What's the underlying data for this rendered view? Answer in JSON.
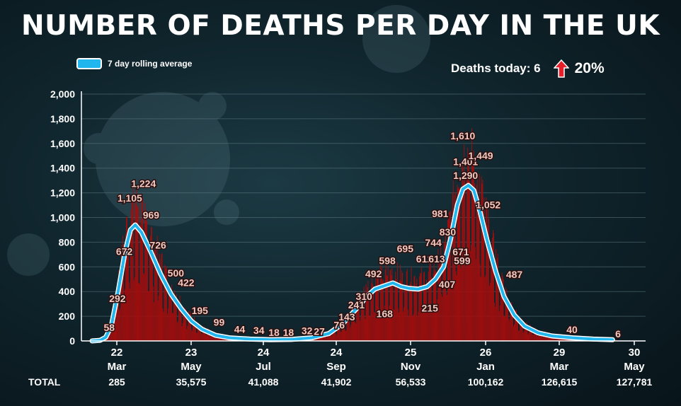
{
  "title": "NUMBER OF DEATHS PER DAY IN THE UK",
  "legend_label": "7 day rolling average",
  "deaths_today_text": "Deaths today: 6",
  "change_percent": "20%",
  "colors": {
    "bars": "#a50d0d",
    "line": "#22b6ee",
    "arrow": "#e5202a"
  },
  "chart_data": {
    "type": "bar",
    "series": [
      {
        "name": "7 day rolling average",
        "type": "line"
      }
    ],
    "ylim": [
      0,
      2000
    ],
    "yticks": [
      0,
      200,
      400,
      600,
      800,
      1000,
      1200,
      1400,
      1600,
      1800,
      2000
    ],
    "ytick_labels": [
      "0",
      "200",
      "400",
      "600",
      "800",
      "1,000",
      "1,200",
      "1,400",
      "1,600",
      "1,800",
      "2,000"
    ],
    "x_ticks": [
      {
        "day": "22",
        "month": "Mar",
        "total": "285"
      },
      {
        "day": "23",
        "month": "May",
        "total": "35,575"
      },
      {
        "day": "24",
        "month": "Jul",
        "total": "41,088"
      },
      {
        "day": "24",
        "month": "Sep",
        "total": "41,902"
      },
      {
        "day": "25",
        "month": "Nov",
        "total": "56,533"
      },
      {
        "day": "26",
        "month": "Jan",
        "total": "100,162"
      },
      {
        "day": "29",
        "month": "Mar",
        "total": "126,615"
      },
      {
        "day": "30",
        "month": "May",
        "total": "127,781"
      }
    ],
    "total_label": "TOTAL",
    "rolling_average": [
      {
        "x": 0,
        "y": 0
      },
      {
        "x": 12,
        "y": 5
      },
      {
        "x": 20,
        "y": 30
      },
      {
        "x": 28,
        "y": 120
      },
      {
        "x": 38,
        "y": 400
      },
      {
        "x": 48,
        "y": 720
      },
      {
        "x": 56,
        "y": 900
      },
      {
        "x": 63,
        "y": 940
      },
      {
        "x": 72,
        "y": 880
      },
      {
        "x": 85,
        "y": 730
      },
      {
        "x": 100,
        "y": 540
      },
      {
        "x": 115,
        "y": 380
      },
      {
        "x": 130,
        "y": 260
      },
      {
        "x": 145,
        "y": 160
      },
      {
        "x": 160,
        "y": 95
      },
      {
        "x": 180,
        "y": 45
      },
      {
        "x": 200,
        "y": 25
      },
      {
        "x": 230,
        "y": 15
      },
      {
        "x": 260,
        "y": 10
      },
      {
        "x": 290,
        "y": 12
      },
      {
        "x": 320,
        "y": 25
      },
      {
        "x": 345,
        "y": 60
      },
      {
        "x": 365,
        "y": 140
      },
      {
        "x": 385,
        "y": 260
      },
      {
        "x": 400,
        "y": 360
      },
      {
        "x": 412,
        "y": 420
      },
      {
        "x": 425,
        "y": 445
      },
      {
        "x": 438,
        "y": 470
      },
      {
        "x": 450,
        "y": 440
      },
      {
        "x": 462,
        "y": 425
      },
      {
        "x": 475,
        "y": 420
      },
      {
        "x": 488,
        "y": 440
      },
      {
        "x": 500,
        "y": 500
      },
      {
        "x": 512,
        "y": 600
      },
      {
        "x": 522,
        "y": 820
      },
      {
        "x": 532,
        "y": 1100
      },
      {
        "x": 540,
        "y": 1230
      },
      {
        "x": 548,
        "y": 1260
      },
      {
        "x": 556,
        "y": 1220
      },
      {
        "x": 565,
        "y": 1050
      },
      {
        "x": 575,
        "y": 820
      },
      {
        "x": 588,
        "y": 560
      },
      {
        "x": 600,
        "y": 360
      },
      {
        "x": 615,
        "y": 210
      },
      {
        "x": 630,
        "y": 120
      },
      {
        "x": 650,
        "y": 65
      },
      {
        "x": 670,
        "y": 40
      },
      {
        "x": 700,
        "y": 25
      },
      {
        "x": 730,
        "y": 15
      },
      {
        "x": 758,
        "y": 10
      }
    ],
    "data_labels": [
      {
        "x": 25,
        "y": 58,
        "label": "58"
      },
      {
        "x": 37,
        "y": 292,
        "label": "292"
      },
      {
        "x": 47,
        "y": 672,
        "label": "672"
      },
      {
        "x": 55,
        "y": 1105,
        "label": "1,105"
      },
      {
        "x": 75,
        "y": 1224,
        "label": "1,224"
      },
      {
        "x": 86,
        "y": 969,
        "label": "969"
      },
      {
        "x": 96,
        "y": 726,
        "label": "726"
      },
      {
        "x": 122,
        "y": 500,
        "label": "500"
      },
      {
        "x": 137,
        "y": 422,
        "label": "422"
      },
      {
        "x": 157,
        "y": 195,
        "label": "195"
      },
      {
        "x": 185,
        "y": 99,
        "label": "99"
      },
      {
        "x": 215,
        "y": 44,
        "label": "44"
      },
      {
        "x": 243,
        "y": 34,
        "label": "34"
      },
      {
        "x": 265,
        "y": 18,
        "label": "18"
      },
      {
        "x": 286,
        "y": 18,
        "label": "18"
      },
      {
        "x": 313,
        "y": 32,
        "label": "32"
      },
      {
        "x": 331,
        "y": 27,
        "label": "27"
      },
      {
        "x": 360,
        "y": 76,
        "label": "76"
      },
      {
        "x": 371,
        "y": 143,
        "label": "143"
      },
      {
        "x": 385,
        "y": 241,
        "label": "241"
      },
      {
        "x": 396,
        "y": 310,
        "label": "310"
      },
      {
        "x": 410,
        "y": 492,
        "label": "492"
      },
      {
        "x": 426,
        "y": 168,
        "label": "168"
      },
      {
        "x": 430,
        "y": 598,
        "label": "598"
      },
      {
        "x": 456,
        "y": 695,
        "label": "695"
      },
      {
        "x": 484,
        "y": 612,
        "label": "612"
      },
      {
        "x": 492,
        "y": 215,
        "label": "215"
      },
      {
        "x": 497,
        "y": 744,
        "label": "744"
      },
      {
        "x": 502,
        "y": 613,
        "label": "613"
      },
      {
        "x": 517,
        "y": 407,
        "label": "407"
      },
      {
        "x": 507,
        "y": 981,
        "label": "981"
      },
      {
        "x": 518,
        "y": 830,
        "label": "830"
      },
      {
        "x": 537,
        "y": 671,
        "label": "671"
      },
      {
        "x": 539,
        "y": 599,
        "label": "599"
      },
      {
        "x": 544,
        "y": 1290,
        "label": "1,290"
      },
      {
        "x": 544,
        "y": 1401,
        "label": "1,401"
      },
      {
        "x": 540,
        "y": 1610,
        "label": "1,610"
      },
      {
        "x": 566,
        "y": 1449,
        "label": "1,449"
      },
      {
        "x": 577,
        "y": 1052,
        "label": "1,052"
      },
      {
        "x": 615,
        "y": 487,
        "label": "487"
      },
      {
        "x": 699,
        "y": 40,
        "label": "40"
      },
      {
        "x": 766,
        "y": 6,
        "label": "6"
      }
    ]
  }
}
